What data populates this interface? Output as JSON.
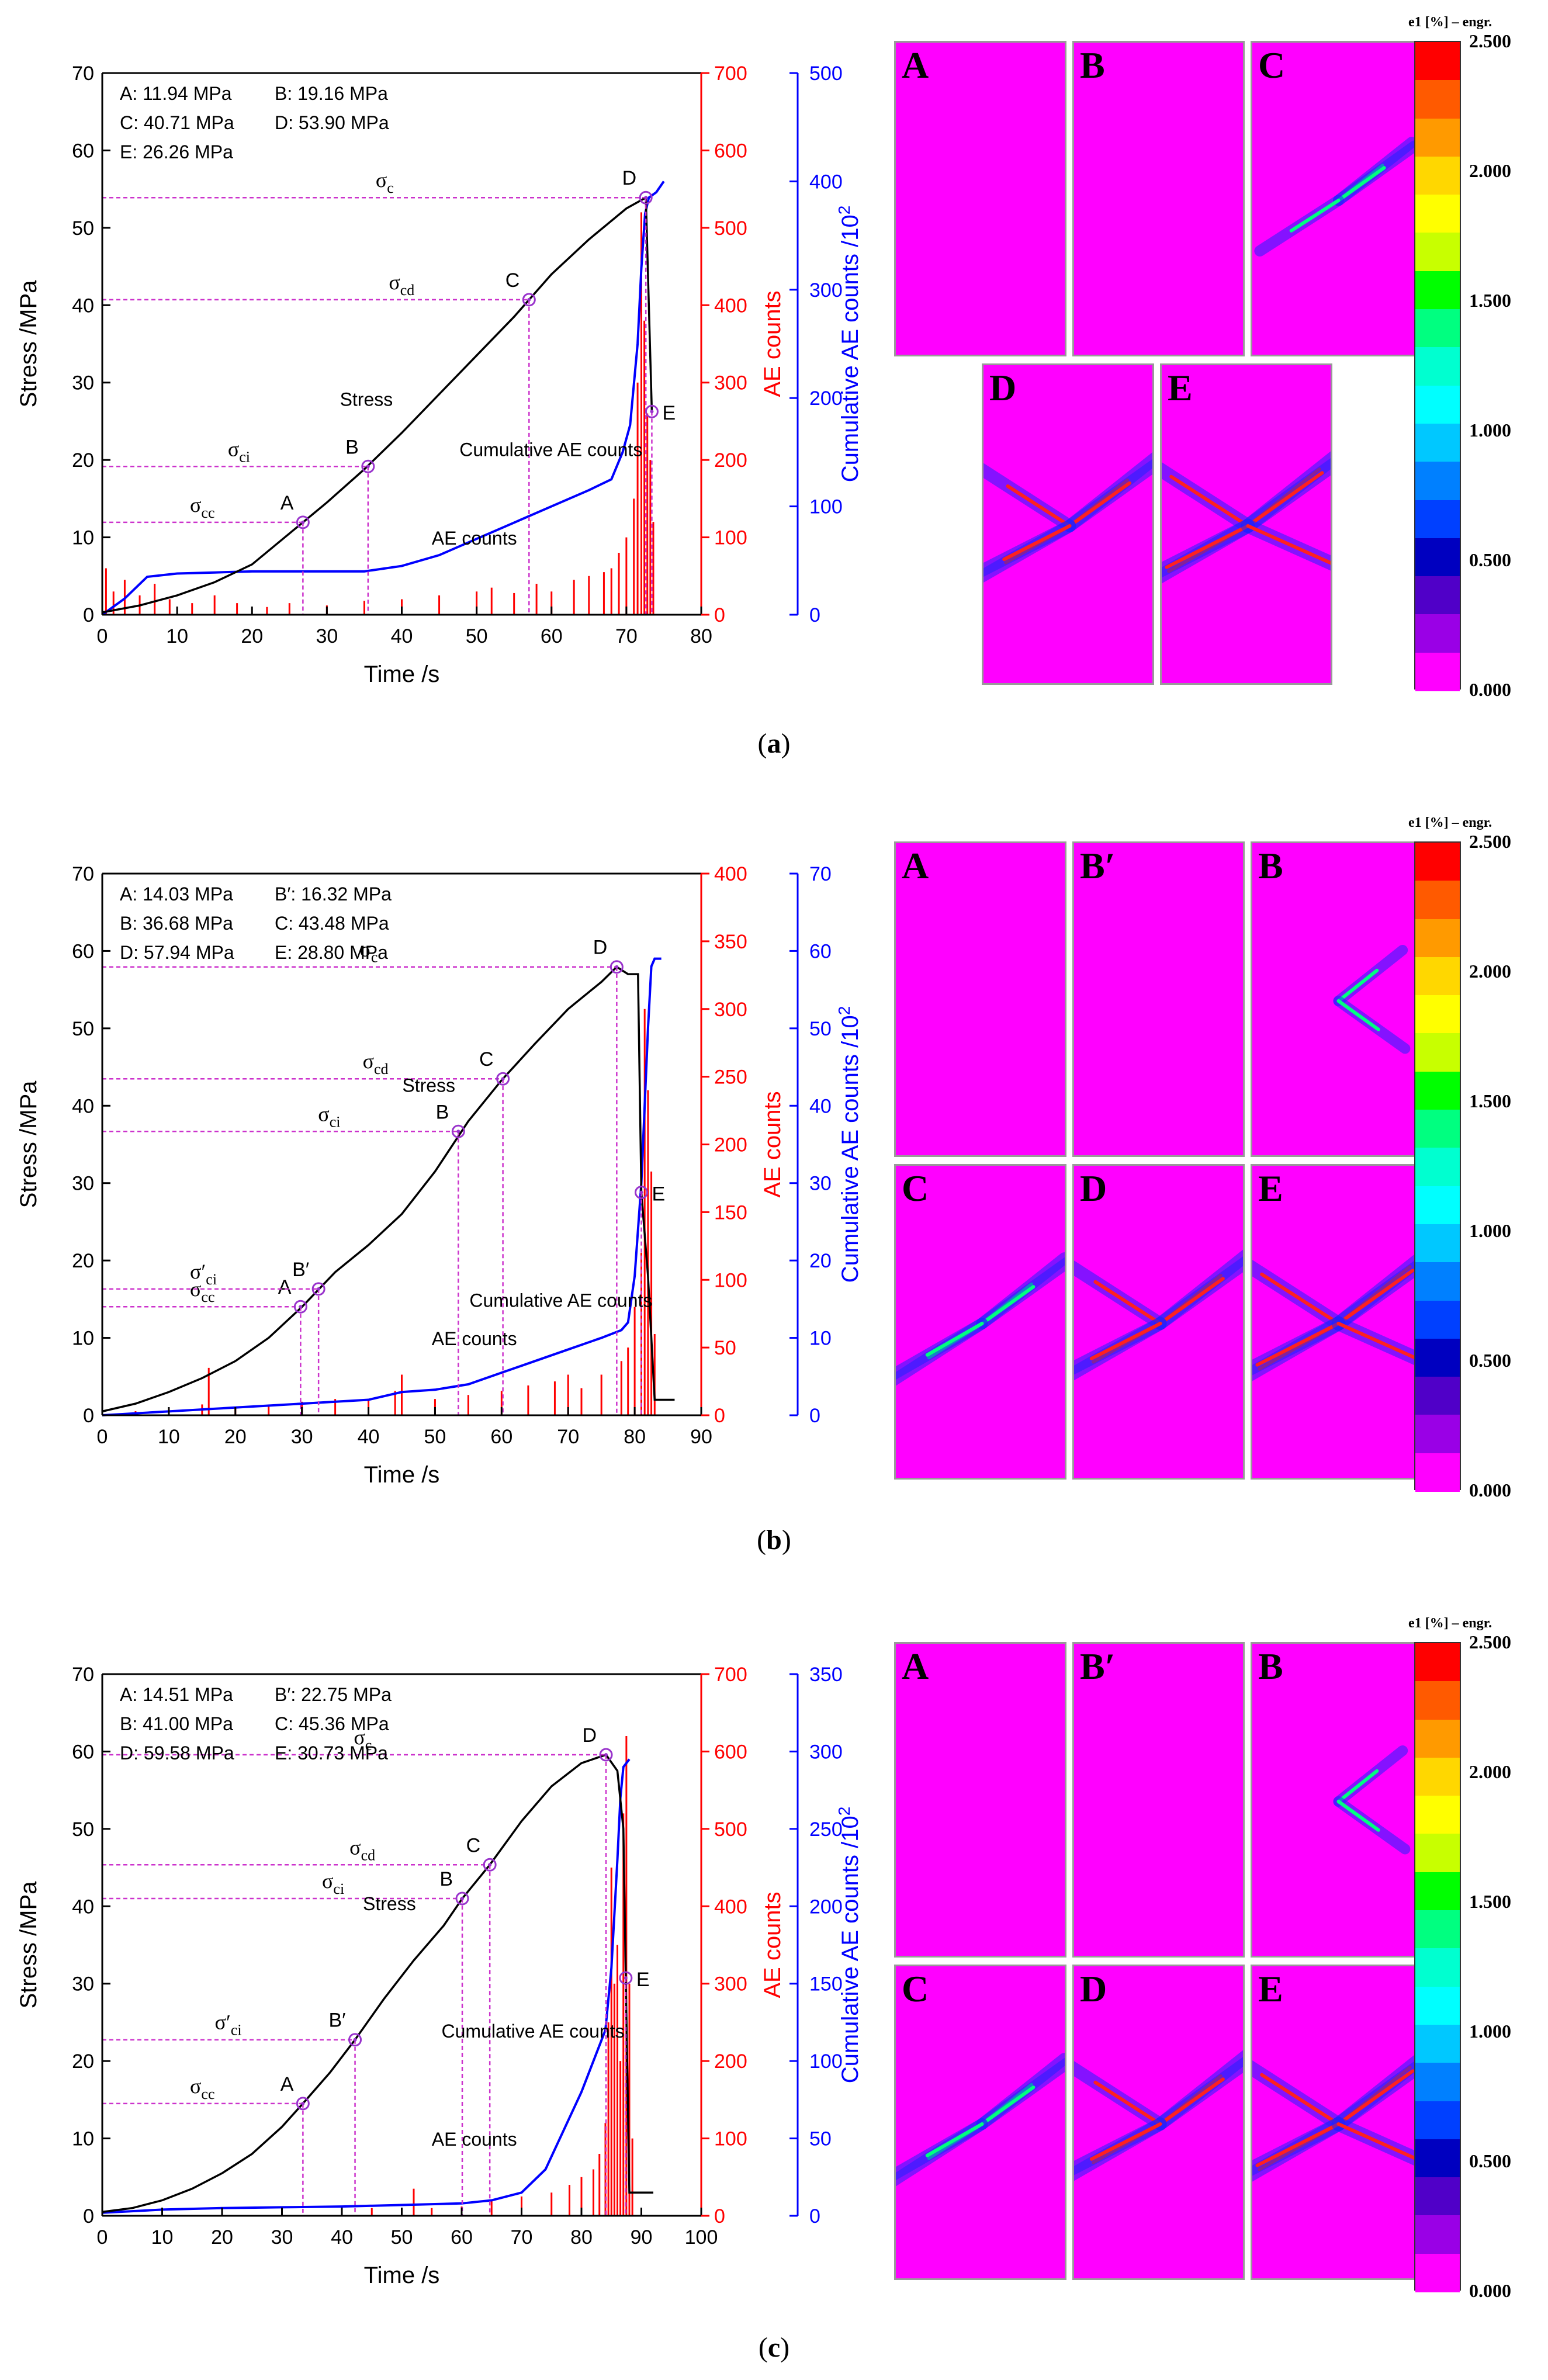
{
  "chart_data": [
    {
      "id": "a",
      "type": "line",
      "caption": "a",
      "xlabel": "Time /s",
      "ylabel_left": "Stress /MPa",
      "ylabel_mid": "AE counts",
      "ylabel_right": "Cumulative AE counts /10",
      "ylabel_right_sup": "2",
      "xlim": [
        0,
        80
      ],
      "xticks": [
        0,
        10,
        20,
        30,
        40,
        50,
        60,
        70,
        80
      ],
      "ylim_stress": [
        0,
        70
      ],
      "yticks_stress": [
        0,
        10,
        20,
        30,
        40,
        50,
        60,
        70
      ],
      "ylim_ae": [
        0,
        700
      ],
      "yticks_ae": [
        0,
        100,
        200,
        300,
        400,
        500,
        600,
        700
      ],
      "ylim_cum": [
        0,
        500
      ],
      "yticks_cum": [
        0,
        100,
        200,
        300,
        400,
        500
      ],
      "legend_text": [
        "A: 11.94 MPa",
        "B: 19.16 MPa",
        "C: 40.71 MPa",
        "D: 53.90 MPa",
        "E: 26.26 MPa"
      ],
      "points": [
        {
          "label": "A",
          "t": 26.8,
          "stress": 11.94,
          "sigma": "cc"
        },
        {
          "label": "B",
          "t": 35.5,
          "stress": 19.16,
          "sigma": "ci"
        },
        {
          "label": "C",
          "t": 57.0,
          "stress": 40.71,
          "sigma": "cd"
        },
        {
          "label": "D",
          "t": 72.6,
          "stress": 53.9,
          "sigma": "c"
        },
        {
          "label": "E",
          "t": 73.4,
          "stress": 26.26,
          "sigma": ""
        }
      ],
      "stress_curve": [
        [
          0,
          0.3
        ],
        [
          5,
          1.2
        ],
        [
          10,
          2.5
        ],
        [
          15,
          4.2
        ],
        [
          20,
          6.5
        ],
        [
          25,
          10.5
        ],
        [
          30,
          14.5
        ],
        [
          35,
          18.8
        ],
        [
          40,
          23.5
        ],
        [
          45,
          28.5
        ],
        [
          50,
          33.5
        ],
        [
          55,
          38.5
        ],
        [
          60,
          44
        ],
        [
          65,
          48.5
        ],
        [
          70,
          52.5
        ],
        [
          72.6,
          53.9
        ],
        [
          73.0,
          40
        ],
        [
          73.4,
          26.26
        ]
      ],
      "cum_curve": [
        [
          0,
          0
        ],
        [
          3,
          15
        ],
        [
          6,
          35
        ],
        [
          10,
          38
        ],
        [
          15,
          39
        ],
        [
          20,
          40
        ],
        [
          30,
          40
        ],
        [
          35,
          40
        ],
        [
          40,
          45
        ],
        [
          45,
          55
        ],
        [
          50,
          70
        ],
        [
          55,
          85
        ],
        [
          60,
          100
        ],
        [
          65,
          115
        ],
        [
          68,
          125
        ],
        [
          69.5,
          150
        ],
        [
          70.5,
          175
        ],
        [
          71.5,
          250
        ],
        [
          72,
          320
        ],
        [
          72.5,
          370
        ],
        [
          73,
          385
        ],
        [
          74,
          390
        ],
        [
          75,
          400
        ]
      ],
      "ae_spikes": [
        [
          0.5,
          60
        ],
        [
          1.5,
          30
        ],
        [
          3,
          45
        ],
        [
          5,
          25
        ],
        [
          7,
          40
        ],
        [
          9,
          20
        ],
        [
          12,
          15
        ],
        [
          15,
          25
        ],
        [
          18,
          15
        ],
        [
          22,
          10
        ],
        [
          25,
          15
        ],
        [
          30,
          12
        ],
        [
          35,
          18
        ],
        [
          40,
          20
        ],
        [
          45,
          25
        ],
        [
          50,
          30
        ],
        [
          52,
          35
        ],
        [
          55,
          28
        ],
        [
          58,
          40
        ],
        [
          60,
          30
        ],
        [
          63,
          45
        ],
        [
          65,
          50
        ],
        [
          67,
          55
        ],
        [
          68,
          60
        ],
        [
          69,
          80
        ],
        [
          70,
          100
        ],
        [
          71,
          150
        ],
        [
          71.5,
          300
        ],
        [
          72,
          520
        ],
        [
          72.4,
          380
        ],
        [
          72.8,
          260
        ],
        [
          73.2,
          200
        ],
        [
          73.6,
          120
        ]
      ],
      "annotations": {
        "stress": "Stress",
        "cum": "Cumulative AE counts",
        "ae": "AE counts"
      },
      "dic_tiles": [
        "A",
        "B",
        "C",
        "D",
        "E"
      ]
    },
    {
      "id": "b",
      "type": "line",
      "caption": "b",
      "xlabel": "Time /s",
      "ylabel_left": "Stress /MPa",
      "ylabel_mid": "AE counts",
      "ylabel_right": "Cumulative AE counts /10",
      "ylabel_right_sup": "2",
      "xlim": [
        0,
        90
      ],
      "xticks": [
        0,
        10,
        20,
        30,
        40,
        50,
        60,
        70,
        80,
        90
      ],
      "ylim_stress": [
        0,
        70
      ],
      "yticks_stress": [
        0,
        10,
        20,
        30,
        40,
        50,
        60,
        70
      ],
      "ylim_ae": [
        0,
        400
      ],
      "yticks_ae": [
        0,
        50,
        100,
        150,
        200,
        250,
        300,
        350,
        400
      ],
      "ylim_cum": [
        0,
        70
      ],
      "yticks_cum": [
        0,
        10,
        20,
        30,
        40,
        50,
        60,
        70
      ],
      "legend_text": [
        "A: 14.03 MPa",
        "B′: 16.32 MPa",
        "B: 36.68 MPa",
        "C: 43.48 MPa",
        "D: 57.94 MPa",
        "E: 28.80 MPa"
      ],
      "points": [
        {
          "label": "A",
          "t": 29.8,
          "stress": 14.03,
          "sigma": "cc"
        },
        {
          "label": "B′",
          "t": 32.5,
          "stress": 16.32,
          "sigma": "′ci"
        },
        {
          "label": "B",
          "t": 53.5,
          "stress": 36.68,
          "sigma": "ci"
        },
        {
          "label": "C",
          "t": 60.2,
          "stress": 43.48,
          "sigma": "cd"
        },
        {
          "label": "D",
          "t": 77.3,
          "stress": 57.94,
          "sigma": "c"
        },
        {
          "label": "E",
          "t": 81.0,
          "stress": 28.8,
          "sigma": ""
        }
      ],
      "stress_curve": [
        [
          0,
          0.5
        ],
        [
          5,
          1.5
        ],
        [
          10,
          3
        ],
        [
          15,
          4.8
        ],
        [
          20,
          7
        ],
        [
          25,
          10
        ],
        [
          30,
          14
        ],
        [
          35,
          18.5
        ],
        [
          40,
          22
        ],
        [
          45,
          26
        ],
        [
          50,
          31.5
        ],
        [
          55,
          38
        ],
        [
          60,
          43.3
        ],
        [
          65,
          48
        ],
        [
          70,
          52.5
        ],
        [
          75,
          56
        ],
        [
          77.3,
          57.94
        ],
        [
          79,
          57
        ],
        [
          80.5,
          57
        ],
        [
          81,
          28.8
        ],
        [
          82,
          18
        ],
        [
          83,
          2
        ],
        [
          86,
          2
        ]
      ],
      "cum_curve": [
        [
          0,
          0
        ],
        [
          10,
          0.5
        ],
        [
          20,
          1
        ],
        [
          30,
          1.5
        ],
        [
          40,
          2
        ],
        [
          45,
          3
        ],
        [
          50,
          3.3
        ],
        [
          55,
          4
        ],
        [
          60,
          5.5
        ],
        [
          65,
          7
        ],
        [
          70,
          8.5
        ],
        [
          75,
          10
        ],
        [
          78,
          11
        ],
        [
          79,
          12
        ],
        [
          80,
          18
        ],
        [
          81,
          30
        ],
        [
          82,
          50
        ],
        [
          82.5,
          58
        ],
        [
          83,
          59
        ],
        [
          84,
          59
        ]
      ],
      "ae_spikes": [
        [
          5,
          3
        ],
        [
          10,
          5
        ],
        [
          15,
          8
        ],
        [
          16,
          35
        ],
        [
          20,
          6
        ],
        [
          25,
          8
        ],
        [
          30,
          10
        ],
        [
          35,
          12
        ],
        [
          40,
          12
        ],
        [
          44,
          18
        ],
        [
          45,
          30
        ],
        [
          50,
          12
        ],
        [
          55,
          15
        ],
        [
          60,
          18
        ],
        [
          64,
          22
        ],
        [
          68,
          25
        ],
        [
          70,
          30
        ],
        [
          72,
          20
        ],
        [
          75,
          30
        ],
        [
          78,
          40
        ],
        [
          79,
          50
        ],
        [
          80,
          80
        ],
        [
          81,
          120
        ],
        [
          81.5,
          300
        ],
        [
          82,
          240
        ],
        [
          82.5,
          180
        ],
        [
          83,
          60
        ]
      ],
      "annotations": {
        "stress": "Stress",
        "cum": "Cumulative AE counts",
        "ae": "AE counts"
      },
      "dic_tiles": [
        "A",
        "B′",
        "B",
        "C",
        "D",
        "E"
      ]
    },
    {
      "id": "c",
      "type": "line",
      "caption": "c",
      "xlabel": "Time /s",
      "ylabel_left": "Stress /MPa",
      "ylabel_mid": "AE counts",
      "ylabel_right": "Cumulative AE counts /10",
      "ylabel_right_sup": "2",
      "xlim": [
        0,
        100
      ],
      "xticks": [
        0,
        10,
        20,
        30,
        40,
        50,
        60,
        70,
        80,
        90,
        100
      ],
      "ylim_stress": [
        0,
        70
      ],
      "yticks_stress": [
        0,
        10,
        20,
        30,
        40,
        50,
        60,
        70
      ],
      "ylim_ae": [
        0,
        700
      ],
      "yticks_ae": [
        0,
        100,
        200,
        300,
        400,
        500,
        600,
        700
      ],
      "ylim_cum": [
        0,
        350
      ],
      "yticks_cum": [
        0,
        50,
        100,
        150,
        200,
        250,
        300,
        350
      ],
      "legend_text": [
        "A: 14.51 MPa",
        "B′: 22.75 MPa",
        "B: 41.00 MPa",
        "C: 45.36 MPa",
        "D: 59.58 MPa",
        "E: 30.73 MPa"
      ],
      "points": [
        {
          "label": "A",
          "t": 33.5,
          "stress": 14.51,
          "sigma": "cc"
        },
        {
          "label": "B′",
          "t": 42.2,
          "stress": 22.75,
          "sigma": "′ci"
        },
        {
          "label": "B",
          "t": 60.1,
          "stress": 41.0,
          "sigma": "ci"
        },
        {
          "label": "C",
          "t": 64.7,
          "stress": 45.36,
          "sigma": "cd"
        },
        {
          "label": "D",
          "t": 84.1,
          "stress": 59.58,
          "sigma": "c"
        },
        {
          "label": "E",
          "t": 87.4,
          "stress": 30.73,
          "sigma": ""
        }
      ],
      "stress_curve": [
        [
          0,
          0.5
        ],
        [
          5,
          1
        ],
        [
          10,
          2
        ],
        [
          15,
          3.5
        ],
        [
          20,
          5.5
        ],
        [
          25,
          8
        ],
        [
          30,
          11.5
        ],
        [
          33.5,
          14.51
        ],
        [
          38,
          18.5
        ],
        [
          42.2,
          22.75
        ],
        [
          47,
          28
        ],
        [
          52,
          33
        ],
        [
          57,
          37.5
        ],
        [
          60.1,
          41
        ],
        [
          64.7,
          45.36
        ],
        [
          70,
          51
        ],
        [
          75,
          55.5
        ],
        [
          80,
          58.5
        ],
        [
          84.1,
          59.58
        ],
        [
          86,
          57.5
        ],
        [
          87,
          50
        ],
        [
          87.4,
          30.73
        ],
        [
          88,
          3
        ],
        [
          92,
          3
        ]
      ],
      "cum_curve": [
        [
          0,
          2
        ],
        [
          10,
          4
        ],
        [
          20,
          5
        ],
        [
          30,
          5.5
        ],
        [
          40,
          6
        ],
        [
          50,
          7
        ],
        [
          60,
          8
        ],
        [
          65,
          10
        ],
        [
          70,
          15
        ],
        [
          74,
          30
        ],
        [
          77,
          55
        ],
        [
          80,
          80
        ],
        [
          82,
          100
        ],
        [
          83,
          110
        ],
        [
          84,
          120
        ],
        [
          85,
          160
        ],
        [
          86,
          230
        ],
        [
          86.5,
          270
        ],
        [
          87,
          290
        ],
        [
          88,
          295
        ]
      ],
      "ae_spikes": [
        [
          10,
          3
        ],
        [
          20,
          5
        ],
        [
          30,
          6
        ],
        [
          40,
          8
        ],
        [
          45,
          10
        ],
        [
          50,
          8
        ],
        [
          52,
          35
        ],
        [
          55,
          10
        ],
        [
          60,
          12
        ],
        [
          65,
          20
        ],
        [
          70,
          25
        ],
        [
          75,
          30
        ],
        [
          78,
          40
        ],
        [
          80,
          50
        ],
        [
          82,
          60
        ],
        [
          83,
          80
        ],
        [
          84,
          120
        ],
        [
          84.5,
          250
        ],
        [
          85,
          450
        ],
        [
          85.5,
          300
        ],
        [
          86,
          350
        ],
        [
          86.5,
          200
        ],
        [
          87,
          520
        ],
        [
          87.5,
          620
        ],
        [
          88,
          300
        ],
        [
          88.5,
          100
        ]
      ],
      "annotations": {
        "stress": "Stress",
        "cum": "Cumulative AE counts",
        "ae": "AE counts"
      },
      "dic_tiles": [
        "A",
        "B′",
        "B",
        "C",
        "D",
        "E"
      ]
    }
  ],
  "colorbar": {
    "title": "e1 [%] – engr.",
    "ticks": [
      "2.500",
      "2.000",
      "1.500",
      "1.000",
      "0.500",
      "0.000"
    ],
    "colors": [
      "#ff0000",
      "#ff5a00",
      "#ff9a00",
      "#ffd700",
      "#ffff00",
      "#c8ff00",
      "#00ff00",
      "#00ff80",
      "#00ffd0",
      "#00ffff",
      "#00c8ff",
      "#0080ff",
      "#0040ff",
      "#0000c0",
      "#5000c8",
      "#9a00e6",
      "#ff00ff"
    ]
  },
  "colors": {
    "stress": "#000000",
    "ae": "#ff0000",
    "cum": "#0000ff",
    "guide": "#cc33cc",
    "sigma_label": "#000000"
  }
}
